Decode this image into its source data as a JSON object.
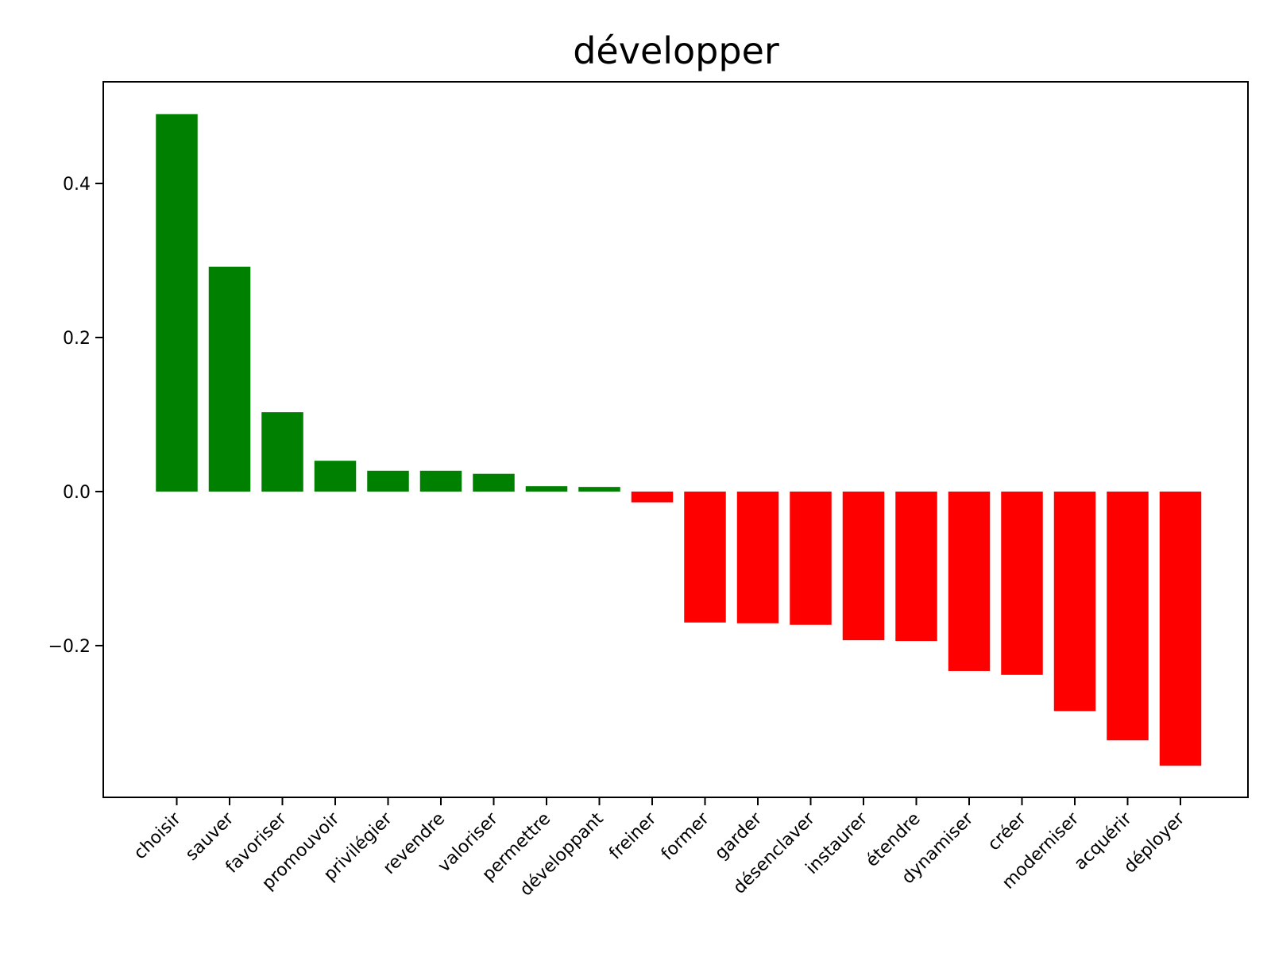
{
  "chart_data": {
    "type": "bar",
    "title": "développer",
    "xlabel": "",
    "ylabel": "",
    "categories": [
      "choisir",
      "sauver",
      "favoriser",
      "promouvoir",
      "privilégier",
      "revendre",
      "valoriser",
      "permettre",
      "développant",
      "freiner",
      "former",
      "garder",
      "désenclaver",
      "instaurer",
      "étendre",
      "dynamiser",
      "créer",
      "moderniser",
      "acquérir",
      "déployer"
    ],
    "values": [
      0.49,
      0.292,
      0.103,
      0.04,
      0.027,
      0.027,
      0.023,
      0.007,
      0.006,
      -0.014,
      -0.17,
      -0.171,
      -0.173,
      -0.193,
      -0.194,
      -0.233,
      -0.238,
      -0.285,
      -0.323,
      -0.356
    ],
    "ylim": [
      -0.397,
      0.532
    ],
    "yticks": [
      -0.2,
      0.0,
      0.2,
      0.4
    ],
    "ytick_labels": [
      "−0.2",
      "0.0",
      "0.2",
      "0.4"
    ],
    "grid": false,
    "colors": {
      "positive": "#008000",
      "negative": "#ff0000"
    }
  }
}
